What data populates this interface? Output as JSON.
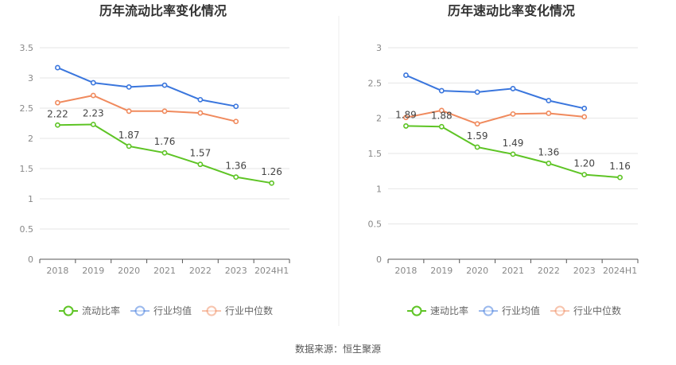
{
  "chart_data": [
    {
      "type": "line",
      "title": "历年流动比率变化情况",
      "categories": [
        "2018",
        "2019",
        "2020",
        "2021",
        "2022",
        "2023",
        "2024H1"
      ],
      "ylim": [
        0,
        3.5
      ],
      "yticks": [
        "0",
        "0.5",
        "1",
        "1.5",
        "2",
        "2.5",
        "3",
        "3.5"
      ],
      "ytick_values": [
        0,
        0.5,
        1,
        1.5,
        2,
        2.5,
        3,
        3.5
      ],
      "series": [
        {
          "name": "流动比率",
          "color": "#5ec425",
          "values": [
            2.22,
            2.23,
            1.87,
            1.76,
            1.57,
            1.36,
            1.26
          ],
          "labels": [
            "2.22",
            "2.23",
            "1.87",
            "1.76",
            "1.57",
            "1.36",
            "1.26"
          ]
        },
        {
          "name": "行业均值",
          "color": "#3a76dd",
          "values": [
            3.17,
            2.92,
            2.85,
            2.88,
            2.64,
            2.53,
            null
          ]
        },
        {
          "name": "行业中位数",
          "color": "#f08a5d",
          "values": [
            2.59,
            2.71,
            2.45,
            2.45,
            2.42,
            2.28,
            null
          ]
        }
      ]
    },
    {
      "type": "line",
      "title": "历年速动比率变化情况",
      "categories": [
        "2018",
        "2019",
        "2020",
        "2021",
        "2022",
        "2023",
        "2024H1"
      ],
      "ylim": [
        0,
        3
      ],
      "yticks": [
        "0",
        "0.5",
        "1",
        "1.5",
        "2",
        "2.5",
        "3"
      ],
      "ytick_values": [
        0,
        0.5,
        1,
        1.5,
        2,
        2.5,
        3
      ],
      "series": [
        {
          "name": "速动比率",
          "color": "#5ec425",
          "values": [
            1.89,
            1.88,
            1.59,
            1.49,
            1.36,
            1.2,
            1.16
          ],
          "labels": [
            "1.89",
            "1.88",
            "1.59",
            "1.49",
            "1.36",
            "1.20",
            "1.16"
          ]
        },
        {
          "name": "行业均值",
          "color": "#3a76dd",
          "values": [
            2.61,
            2.39,
            2.37,
            2.42,
            2.25,
            2.14,
            null
          ]
        },
        {
          "name": "行业中位数",
          "color": "#f08a5d",
          "values": [
            2.01,
            2.11,
            1.92,
            2.06,
            2.07,
            2.02,
            null
          ]
        }
      ]
    }
  ],
  "footer": {
    "source": "数据来源：恒生聚源"
  }
}
